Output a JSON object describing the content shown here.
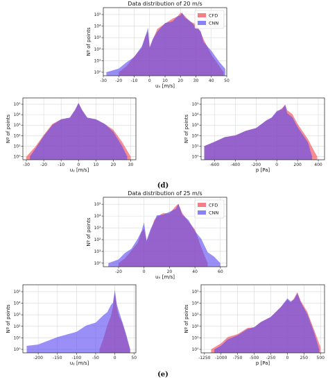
{
  "captions": [
    "(d)",
    "(e)"
  ],
  "colors": {
    "cfd": "#f0474f",
    "cnn": "#5a4bf2",
    "overlap": "#7a1fa0"
  },
  "chart_data": [
    {
      "id": "d1",
      "type": "area",
      "figure": "d",
      "title": "Data distribution of 20 m/s",
      "xlabel": "uₓ [m/s]",
      "ylabel": "Nº of points",
      "xlim": [
        -30,
        50
      ],
      "ylim_log10": [
        -0.3,
        5.6
      ],
      "yscale": "log",
      "xticks": [
        -30,
        -20,
        -10,
        0,
        10,
        20,
        30,
        40,
        50
      ],
      "yticks": [
        "10⁰",
        "10¹",
        "10²",
        "10³",
        "10⁴",
        "10⁵"
      ],
      "legend": {
        "position": "top-right",
        "entries": [
          "CFD",
          "CNN"
        ]
      },
      "grid": true,
      "series": [
        {
          "name": "CFD",
          "x": [
            -20,
            -15,
            -10,
            -5,
            -3,
            -1,
            0,
            2,
            5,
            10,
            15,
            18,
            20,
            21,
            23,
            26,
            30,
            33,
            35,
            40,
            45,
            48
          ],
          "y_log10": [
            0.0,
            0.6,
            1.3,
            2.2,
            3.0,
            3.6,
            2.1,
            2.9,
            3.7,
            4.3,
            4.6,
            4.9,
            5.1,
            5.2,
            4.8,
            4.5,
            4.1,
            3.6,
            2.8,
            1.6,
            0.5,
            0.0
          ]
        },
        {
          "name": "CNN",
          "x": [
            -28,
            -20,
            -15,
            -10,
            -5,
            -3,
            -1,
            0,
            2,
            5,
            10,
            15,
            18,
            20,
            21,
            23,
            26,
            30,
            33,
            35,
            40,
            45,
            49
          ],
          "y_log10": [
            0.0,
            0.4,
            0.8,
            1.4,
            2.2,
            3.1,
            3.8,
            2.2,
            2.8,
            3.6,
            4.2,
            4.5,
            4.8,
            5.0,
            5.1,
            4.8,
            4.4,
            4.0,
            3.5,
            2.7,
            1.8,
            1.0,
            0.3
          ]
        }
      ]
    },
    {
      "id": "d2",
      "type": "area",
      "figure": "d",
      "title": "",
      "xlabel": "uᵧ [m/s]",
      "ylabel": "Nº of points",
      "xlim": [
        -32,
        33
      ],
      "ylim_log10": [
        -0.3,
        5.6
      ],
      "yscale": "log",
      "xticks": [
        -30,
        -20,
        -10,
        0,
        10,
        20,
        30
      ],
      "yticks": [
        "10⁰",
        "10¹",
        "10²",
        "10³",
        "10⁴",
        "10⁵"
      ],
      "grid": true,
      "series": [
        {
          "name": "CFD",
          "x": [
            -30,
            -25,
            -20,
            -15,
            -10,
            -5,
            -2,
            0,
            2,
            5,
            10,
            15,
            20,
            25,
            30
          ],
          "y_log10": [
            0.0,
            1.0,
            2.0,
            3.2,
            3.5,
            3.8,
            4.4,
            5.2,
            4.4,
            3.8,
            3.5,
            3.2,
            2.5,
            1.5,
            0.0
          ]
        },
        {
          "name": "CNN",
          "x": [
            -28,
            -25,
            -20,
            -15,
            -10,
            -5,
            -2,
            0,
            2,
            5,
            10,
            15,
            20,
            25,
            28
          ],
          "y_log10": [
            0.0,
            0.8,
            1.9,
            3.1,
            3.5,
            3.8,
            4.4,
            5.2,
            4.4,
            3.8,
            3.5,
            3.2,
            2.3,
            1.1,
            0.0
          ]
        }
      ]
    },
    {
      "id": "d3",
      "type": "area",
      "figure": "d",
      "title": "",
      "xlabel": "p [Pa]",
      "ylabel": "Nº of points",
      "xlim": [
        -730,
        460
      ],
      "ylim_log10": [
        -0.3,
        5.6
      ],
      "yscale": "log",
      "xticks": [
        -600,
        -400,
        -200,
        0,
        200,
        400
      ],
      "yticks": [
        "10⁰",
        "10¹",
        "10²",
        "10³",
        "10⁴",
        "10⁵"
      ],
      "grid": true,
      "series": [
        {
          "name": "CFD",
          "x": [
            -700,
            -600,
            -500,
            -400,
            -300,
            -200,
            -100,
            -50,
            0,
            50,
            80,
            100,
            150,
            200,
            300,
            350,
            390
          ],
          "y_log10": [
            1.0,
            1.5,
            1.8,
            2.1,
            2.4,
            2.8,
            3.4,
            3.8,
            4.2,
            4.7,
            4.9,
            4.5,
            4.0,
            3.2,
            1.6,
            0.8,
            0.0
          ]
        },
        {
          "name": "CNN",
          "x": [
            -700,
            -600,
            -500,
            -400,
            -300,
            -200,
            -100,
            -50,
            0,
            50,
            80,
            100,
            150,
            200,
            300,
            340
          ],
          "y_log10": [
            1.0,
            1.5,
            1.8,
            2.1,
            2.4,
            2.8,
            3.4,
            3.8,
            4.3,
            4.6,
            4.9,
            4.2,
            3.7,
            2.9,
            1.3,
            0.0
          ]
        }
      ]
    },
    {
      "id": "e1",
      "type": "area",
      "figure": "e",
      "title": "Data distribution of 25 m/s",
      "xlabel": "uₓ [m/s]",
      "ylabel": "Nº of points",
      "xlim": [
        -32,
        65
      ],
      "ylim_log10": [
        -0.3,
        5.6
      ],
      "yscale": "log",
      "xticks": [
        -20,
        0,
        20,
        40,
        60
      ],
      "yticks": [
        "10⁰",
        "10¹",
        "10²",
        "10³",
        "10⁴",
        "10⁵"
      ],
      "legend": {
        "position": "top-right",
        "entries": [
          "CFD",
          "CNN"
        ]
      },
      "grid": true,
      "series": [
        {
          "name": "CFD",
          "x": [
            -20,
            -15,
            -10,
            -5,
            -2,
            0,
            2,
            5,
            8,
            10,
            15,
            20,
            25,
            27,
            30,
            35,
            40,
            45,
            50
          ],
          "y_log10": [
            0.0,
            0.5,
            1.0,
            1.8,
            2.6,
            3.0,
            1.8,
            2.8,
            3.6,
            4.0,
            4.2,
            4.3,
            4.8,
            5.1,
            4.2,
            3.6,
            2.8,
            1.4,
            0.0
          ]
        },
        {
          "name": "CNN",
          "x": [
            -28,
            -20,
            -15,
            -10,
            -5,
            -2,
            0,
            2,
            5,
            8,
            10,
            15,
            20,
            25,
            27,
            30,
            35,
            40,
            45,
            50,
            55,
            60
          ],
          "y_log10": [
            0.0,
            0.4,
            0.8,
            1.3,
            2.0,
            2.8,
            3.4,
            2.0,
            2.8,
            3.6,
            4.0,
            4.2,
            4.3,
            4.7,
            5.0,
            4.2,
            3.6,
            2.8,
            2.0,
            1.0,
            0.5,
            0.0
          ]
        }
      ]
    },
    {
      "id": "e2",
      "type": "area",
      "figure": "e",
      "title": "",
      "xlabel": "uᵧ [m/s]",
      "ylabel": "Nº of points",
      "xlim": [
        -240,
        55
      ],
      "ylim_log10": [
        -0.3,
        5.6
      ],
      "yscale": "log",
      "xticks": [
        -200,
        -150,
        -100,
        -50,
        0,
        50
      ],
      "yticks": [
        "10⁰",
        "10¹",
        "10²",
        "10³",
        "10⁴",
        "10⁵"
      ],
      "grid": true,
      "series": [
        {
          "name": "CFD",
          "x": [
            -40,
            -30,
            -20,
            -10,
            -5,
            0,
            5,
            10,
            20,
            30,
            40
          ],
          "y_log10": [
            0.0,
            1.0,
            2.0,
            3.0,
            3.6,
            5.0,
            3.6,
            3.0,
            2.2,
            1.2,
            0.0
          ]
        },
        {
          "name": "CNN",
          "x": [
            -230,
            -200,
            -150,
            -100,
            -75,
            -50,
            -30,
            -20,
            -10,
            -5,
            0,
            5,
            10,
            20,
            30,
            40
          ],
          "y_log10": [
            0.3,
            0.5,
            1.0,
            1.6,
            2.0,
            2.4,
            2.9,
            3.3,
            3.8,
            4.1,
            5.1,
            4.0,
            3.3,
            2.4,
            1.2,
            0.0
          ]
        }
      ]
    },
    {
      "id": "e3",
      "type": "area",
      "figure": "e",
      "title": "",
      "xlabel": "p [Pa]",
      "ylabel": "Nº of points",
      "xlim": [
        -1300,
        560
      ],
      "ylim_log10": [
        -0.3,
        5.6
      ],
      "yscale": "log",
      "xticks": [
        -1250,
        -1000,
        -750,
        -500,
        -250,
        0,
        250,
        500
      ],
      "yticks": [
        "10⁰",
        "10¹",
        "10²",
        "10³",
        "10⁴",
        "10⁵"
      ],
      "grid": true,
      "series": [
        {
          "name": "CFD",
          "x": [
            -1150,
            -1000,
            -900,
            -750,
            -600,
            -500,
            -400,
            -250,
            -100,
            0,
            50,
            100,
            150,
            200,
            300,
            400,
            500
          ],
          "y_log10": [
            0.0,
            0.6,
            1.0,
            1.4,
            1.8,
            2.0,
            2.3,
            2.9,
            3.6,
            4.4,
            4.0,
            4.5,
            4.9,
            4.3,
            3.2,
            1.8,
            0.2
          ]
        },
        {
          "name": "CNN",
          "x": [
            -1100,
            -1000,
            -900,
            -750,
            -600,
            -500,
            -400,
            -250,
            -100,
            0,
            50,
            100,
            150,
            200,
            300,
            400,
            480
          ],
          "y_log10": [
            0.0,
            0.4,
            0.8,
            1.3,
            1.7,
            2.0,
            2.3,
            2.9,
            3.6,
            4.5,
            4.1,
            4.4,
            4.8,
            4.2,
            3.0,
            1.6,
            0.0
          ]
        }
      ]
    }
  ]
}
